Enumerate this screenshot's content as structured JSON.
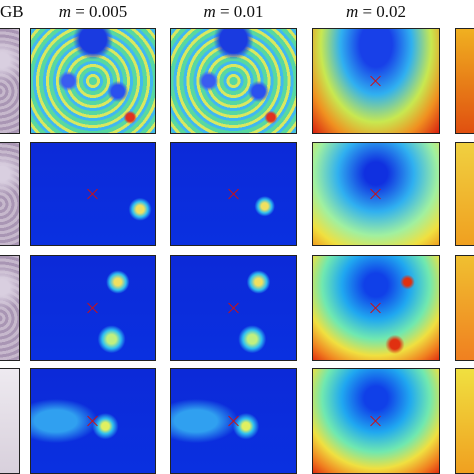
{
  "headers": [
    {
      "text": "GB"
    },
    {
      "var": "m",
      "rest": " = 0.005"
    },
    {
      "var": "m",
      "rest": " = 0.01"
    },
    {
      "var": "m",
      "rest": " = 0.02"
    }
  ]
}
